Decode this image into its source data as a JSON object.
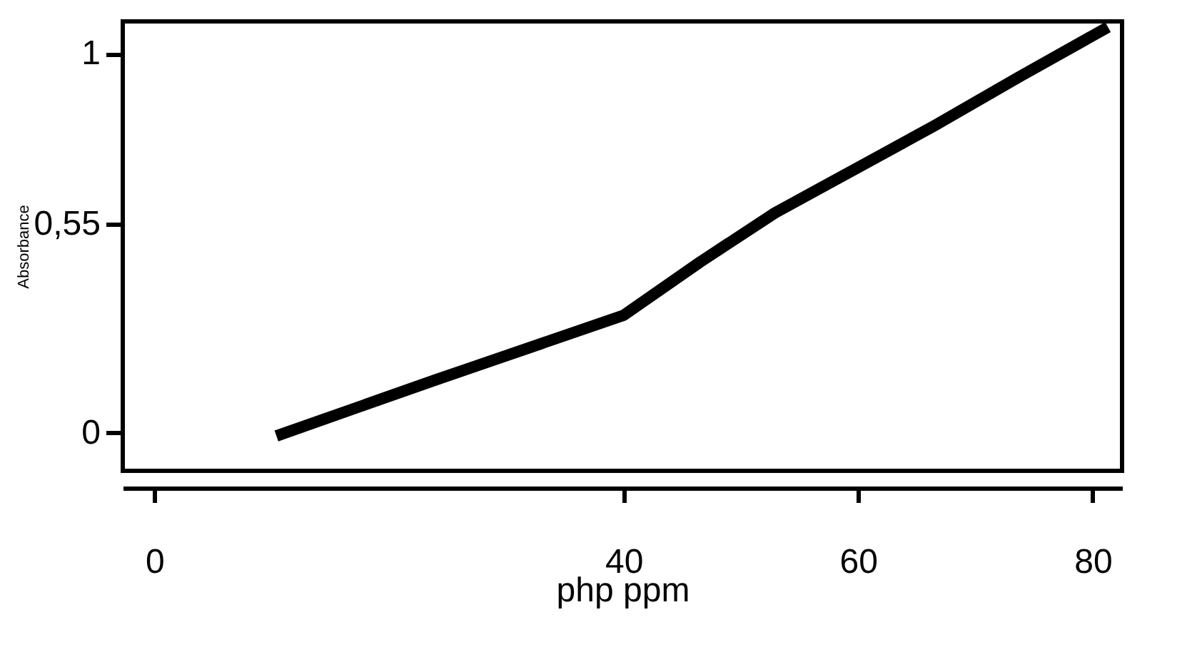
{
  "chart_data": {
    "type": "line",
    "xlabel": "php ppm",
    "ylabel": "Absorbance",
    "x": [
      10.4,
      24,
      40,
      46.5,
      52.9,
      60,
      66.5,
      73.8,
      81.3
    ],
    "series": [
      {
        "color": "#000000",
        "values": [
          -0.008,
          0.14,
          0.31,
          0.45,
          0.58,
          0.7,
          0.81,
          0.94,
          1.07
        ]
      }
    ],
    "xlim": [
      -2.7,
      82.5
    ],
    "ylim": [
      -0.1,
      1.085
    ],
    "xticks": [
      0,
      40,
      60,
      80
    ],
    "yticks": [
      0,
      {
        "value": 0.55,
        "label": "0,55"
      },
      1
    ],
    "grid": false,
    "marker": "none",
    "line_style": "solid"
  }
}
